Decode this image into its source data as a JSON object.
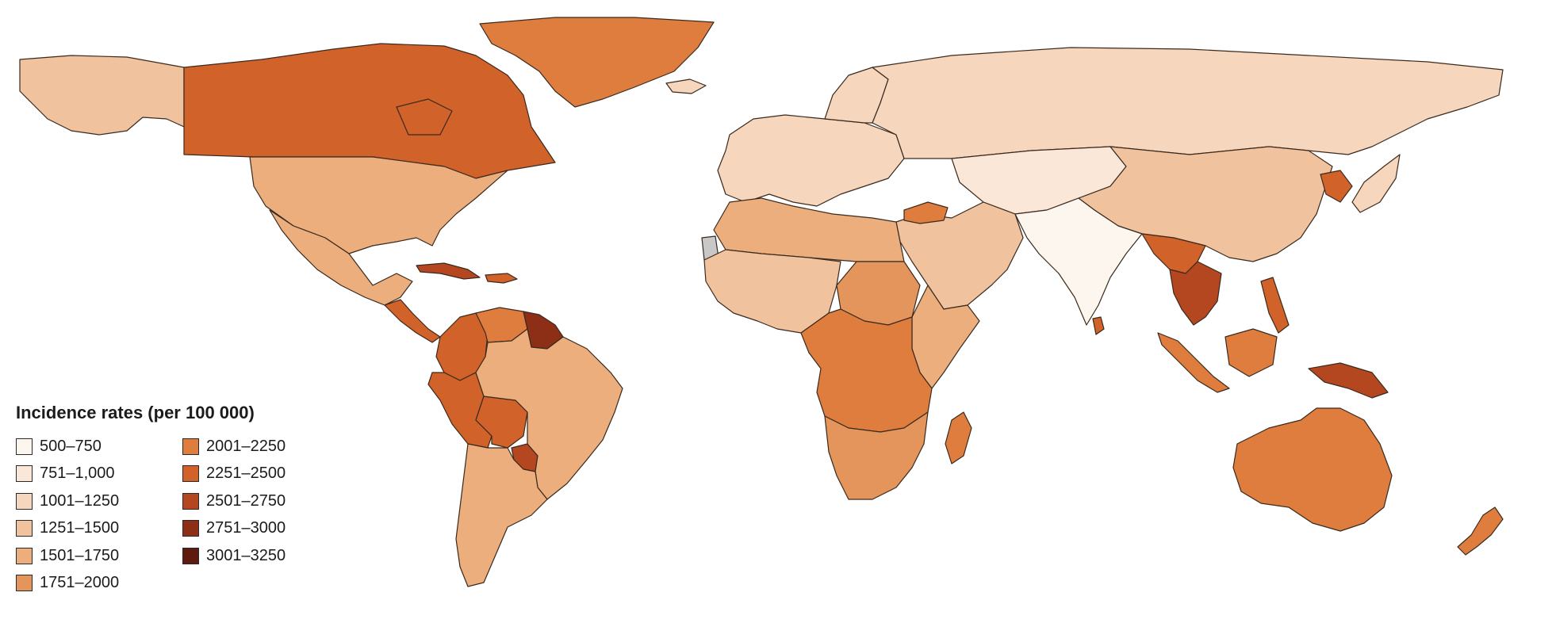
{
  "legend": {
    "title": "Incidence rates (per 100 000)",
    "items": [
      {
        "label": "500–750",
        "color": "#fdf6ee"
      },
      {
        "label": "751–1,000",
        "color": "#fbe7d7"
      },
      {
        "label": "1001–1250",
        "color": "#f6d6bc"
      },
      {
        "label": "1251–1500",
        "color": "#f0c29e"
      },
      {
        "label": "1501–1750",
        "color": "#ebae7c"
      },
      {
        "label": "1751–2000",
        "color": "#e4955b"
      },
      {
        "label": "2001–2250",
        "color": "#df7d3f"
      },
      {
        "label": "2251–2500",
        "color": "#d0622a"
      },
      {
        "label": "2501–2750",
        "color": "#b4471f"
      },
      {
        "label": "2751–3000",
        "color": "#8d2f17"
      },
      {
        "label": "3001–3250",
        "color": "#5e1a0d"
      }
    ],
    "no_data_color": "#c8c8c8"
  },
  "regions": [
    {
      "name": "Alaska",
      "bin": 3
    },
    {
      "name": "Canada",
      "bin": 7
    },
    {
      "name": "Greenland",
      "bin": 6
    },
    {
      "name": "United States",
      "bin": 4
    },
    {
      "name": "Mexico",
      "bin": 4
    },
    {
      "name": "Central America",
      "bin": 7
    },
    {
      "name": "Cuba",
      "bin": 8
    },
    {
      "name": "Hispaniola",
      "bin": 7
    },
    {
      "name": "Colombia",
      "bin": 7
    },
    {
      "name": "Venezuela",
      "bin": 6
    },
    {
      "name": "Guianas",
      "bin": 9
    },
    {
      "name": "Peru",
      "bin": 7
    },
    {
      "name": "Bolivia",
      "bin": 7
    },
    {
      "name": "Paraguay",
      "bin": 8
    },
    {
      "name": "Brazil",
      "bin": 4
    },
    {
      "name": "Southern Cone",
      "bin": 4
    },
    {
      "name": "Iceland",
      "bin": 2
    },
    {
      "name": "Europe",
      "bin": 2
    },
    {
      "name": "Scandinavia",
      "bin": 2
    },
    {
      "name": "Russia",
      "bin": 2
    },
    {
      "name": "Central Asia",
      "bin": 1
    },
    {
      "name": "China",
      "bin": 3
    },
    {
      "name": "Korea",
      "bin": 7
    },
    {
      "name": "Japan",
      "bin": 2
    },
    {
      "name": "Middle East",
      "bin": 3
    },
    {
      "name": "Levant",
      "bin": 6
    },
    {
      "name": "India",
      "bin": 0
    },
    {
      "name": "Sri Lanka",
      "bin": 7
    },
    {
      "name": "North Africa",
      "bin": 4
    },
    {
      "name": "Western Sahara",
      "bin": -1
    },
    {
      "name": "West Africa",
      "bin": 3
    },
    {
      "name": "Sudan",
      "bin": 5
    },
    {
      "name": "Horn of Africa",
      "bin": 4
    },
    {
      "name": "Central Africa",
      "bin": 6
    },
    {
      "name": "Southern Africa",
      "bin": 5
    },
    {
      "name": "Madagascar",
      "bin": 6
    },
    {
      "name": "Indochina",
      "bin": 7
    },
    {
      "name": "Mainland Southeast Asia",
      "bin": 8
    },
    {
      "name": "Sumatra",
      "bin": 6
    },
    {
      "name": "Borneo",
      "bin": 6
    },
    {
      "name": "Philippines",
      "bin": 7
    },
    {
      "name": "New Guinea",
      "bin": 8
    },
    {
      "name": "Australia",
      "bin": 6
    },
    {
      "name": "New Zealand",
      "bin": 6
    }
  ]
}
